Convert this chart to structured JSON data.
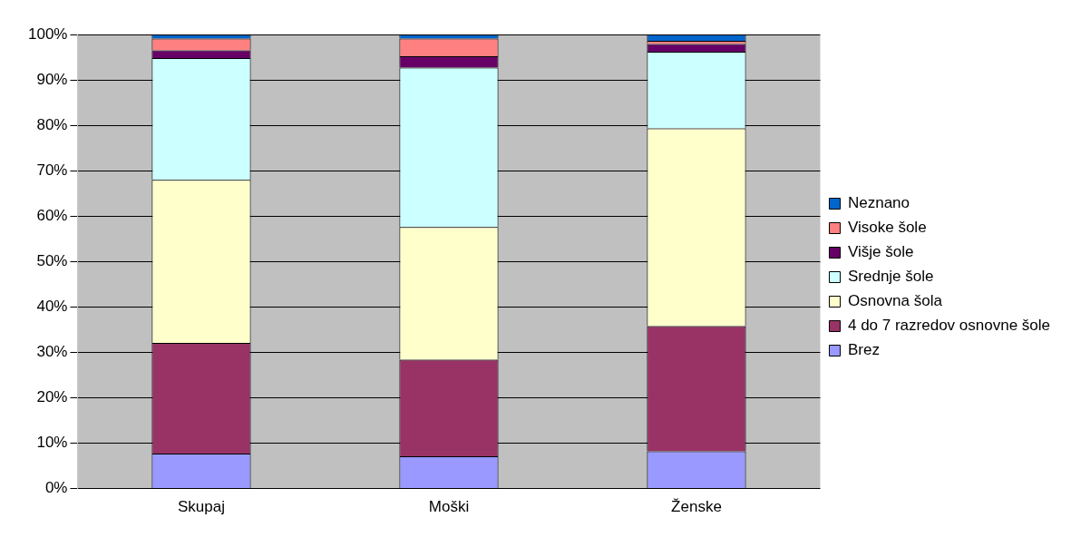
{
  "chart_data": {
    "type": "bar",
    "stacked": true,
    "categories": [
      "Skupaj",
      "Moški",
      "Ženske"
    ],
    "series": [
      {
        "name": "Brez",
        "color": "#9999ff",
        "values": [
          7.7,
          7.1,
          8.2
        ]
      },
      {
        "name": "4 do 7 razredov osnovne šole",
        "color": "#993366",
        "values": [
          24.4,
          21.3,
          27.6
        ]
      },
      {
        "name": "Osnovna šola",
        "color": "#ffffcc",
        "values": [
          35.9,
          29.2,
          43.5
        ]
      },
      {
        "name": "Srednje šole",
        "color": "#ccffff",
        "values": [
          26.8,
          35.1,
          16.9
        ]
      },
      {
        "name": "Višje šole",
        "color": "#660066",
        "values": [
          1.7,
          2.5,
          1.7
        ]
      },
      {
        "name": "Visoke šole",
        "color": "#ff8080",
        "values": [
          2.6,
          3.9,
          0.7
        ]
      },
      {
        "name": "Neznano",
        "color": "#0066cc",
        "values": [
          0.9,
          0.9,
          1.4
        ]
      }
    ],
    "ylim": [
      0,
      100
    ],
    "yticks": [
      {
        "value": 0,
        "label": "0%"
      },
      {
        "value": 10,
        "label": "10%"
      },
      {
        "value": 20,
        "label": "20%"
      },
      {
        "value": 30,
        "label": "30%"
      },
      {
        "value": 40,
        "label": "40%"
      },
      {
        "value": 50,
        "label": "50%"
      },
      {
        "value": 60,
        "label": "60%"
      },
      {
        "value": 70,
        "label": "70%"
      },
      {
        "value": 80,
        "label": "80%"
      },
      {
        "value": 90,
        "label": "90%"
      },
      {
        "value": 100,
        "label": "100%"
      }
    ],
    "grid": "y",
    "legend": "right"
  }
}
